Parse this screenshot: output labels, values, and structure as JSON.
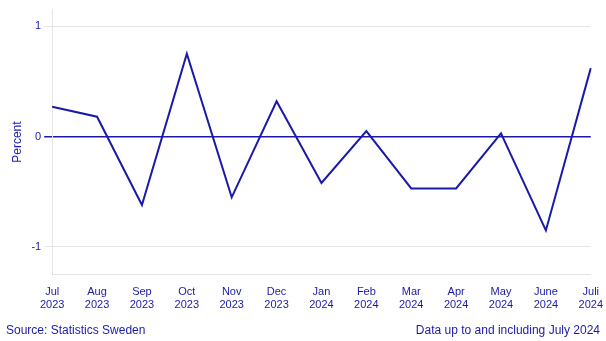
{
  "chart_data": {
    "type": "line",
    "y_label": "Percent",
    "categories": [
      "Jul\n2023",
      "Aug\n2023",
      "Sep\n2023",
      "Oct\n2023",
      "Nov\n2023",
      "Dec\n2023",
      "Jan\n2024",
      "Feb\n2024",
      "Mar\n2024",
      "Apr\n2024",
      "May\n2024",
      "June\n2024",
      "Juli\n2024"
    ],
    "values": [
      0.27,
      0.18,
      -0.62,
      0.75,
      -0.55,
      0.32,
      -0.42,
      0.05,
      -0.47,
      -0.47,
      0.03,
      -0.85,
      0.62
    ],
    "color": "#1a1aaa",
    "ylim": [
      -1.25,
      1.15
    ],
    "yticks": [
      -1,
      0,
      1
    ],
    "grid": true,
    "annotations": [
      "Source: Statistics Sweden",
      "Data up to and including July 2024"
    ]
  }
}
